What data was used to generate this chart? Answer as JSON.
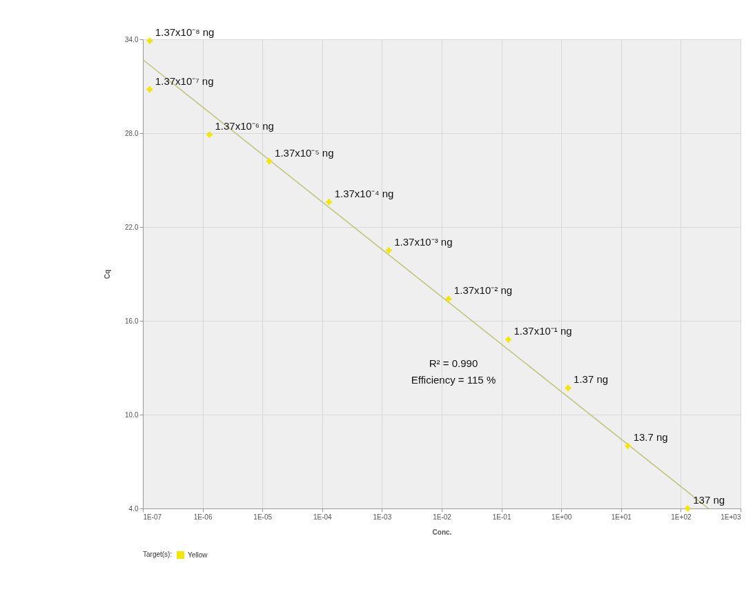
{
  "chart_data": {
    "type": "scatter",
    "xlabel": "Conc.",
    "ylabel": "Cq",
    "legend_title": "Target(s):",
    "log": "x",
    "grid": true,
    "legend": "bottom",
    "marker": "cross",
    "xlim": [
      1e-07,
      1000
    ],
    "xticks": [
      {
        "value": 1e-07,
        "label": "1E-07"
      },
      {
        "value": 1e-06,
        "label": "1E-06"
      },
      {
        "value": 1e-05,
        "label": "1E-05"
      },
      {
        "value": 0.0001,
        "label": "1E-04"
      },
      {
        "value": 0.001,
        "label": "1E-03"
      },
      {
        "value": 0.01,
        "label": "1E-02"
      },
      {
        "value": 0.1,
        "label": "1E-01"
      },
      {
        "value": 1,
        "label": "1E+00"
      },
      {
        "value": 10,
        "label": "1E+01"
      },
      {
        "value": 100,
        "label": "1E+02"
      },
      {
        "value": 1000,
        "label": "1E+03"
      }
    ],
    "ylim": [
      4,
      34
    ],
    "yticks": [
      {
        "value": 4,
        "label": "4.0"
      },
      {
        "value": 10,
        "label": "10.0"
      },
      {
        "value": 16,
        "label": "16.0"
      },
      {
        "value": 22,
        "label": "22.0"
      },
      {
        "value": 28,
        "label": "28.0"
      },
      {
        "value": 34,
        "label": "34.0"
      }
    ],
    "series": [
      {
        "name": "Yellow",
        "color": "#f2e600",
        "x": [
          1.3e-07,
          1.3e-07,
          1.3e-06,
          1.3e-05,
          0.00013,
          0.0013,
          0.013,
          0.13,
          1.3,
          13,
          130
        ],
        "values": [
          33.9,
          30.8,
          27.9,
          26.2,
          23.6,
          20.5,
          17.4,
          14.8,
          11.7,
          8.0,
          4.0
        ]
      },
      {
        "type": "line",
        "marker": "none",
        "color": "#c2c27a",
        "x": [
          1e-07,
          290
        ],
        "values": [
          32.7,
          4
        ]
      }
    ],
    "annotations": [
      {
        "text": "1.37x10⁻⁸ ng",
        "x": 1.3e-07,
        "y": 33.9
      },
      {
        "text": "1.37x10⁻⁷ ng",
        "x": 1.3e-07,
        "y": 30.8
      },
      {
        "text": "1.37x10⁻⁶ ng",
        "x": 1.3e-06,
        "y": 27.9
      },
      {
        "text": "1.37x10⁻⁵ ng",
        "x": 1.3e-05,
        "y": 26.2
      },
      {
        "text": "1.37x10⁻⁴ ng",
        "x": 0.00013,
        "y": 23.6
      },
      {
        "text": "1.37x10⁻³ ng",
        "x": 0.0013,
        "y": 20.5
      },
      {
        "text": "1.37x10⁻² ng",
        "x": 0.013,
        "y": 17.4
      },
      {
        "text": "1.37x10⁻¹ ng",
        "x": 0.13,
        "y": 14.8
      },
      {
        "text": "1.37 ng",
        "x": 1.3,
        "y": 11.7
      },
      {
        "text": "13.7 ng",
        "x": 13,
        "y": 8.0
      },
      {
        "text": "137 ng",
        "x": 130,
        "y": 4.0
      },
      "R² = 0.990",
      "Efficiency = 115 %"
    ]
  }
}
